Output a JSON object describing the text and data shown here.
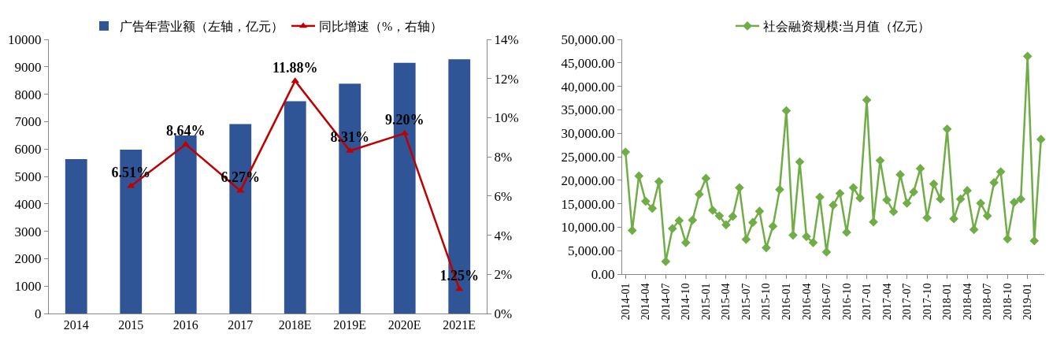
{
  "chart_data": [
    {
      "type": "bar",
      "categories": [
        "2014",
        "2015",
        "2016",
        "2017",
        "2018E",
        "2019E",
        "2020E",
        "2021E"
      ],
      "series": [
        {
          "name": "广告年营业额（左轴，亿元）",
          "color": "#2f5597",
          "values": [
            5630,
            5975,
            6494,
            6914,
            7741,
            8383,
            9148,
            9272
          ]
        },
        {
          "name": "同比增速（%，右轴）",
          "type": "line",
          "axis": "y2",
          "color": "#c00000",
          "marker": "triangle",
          "values": [
            null,
            6.51,
            8.64,
            6.27,
            11.88,
            8.31,
            9.2,
            1.25
          ],
          "value_labels": [
            null,
            "6.51%",
            "8.64%",
            "6.27%",
            "11.88%",
            "8.31%",
            "9.20%",
            "1.25%"
          ]
        }
      ],
      "ylim": [
        0,
        10000
      ],
      "yticks": [
        0,
        1000,
        2000,
        3000,
        4000,
        5000,
        6000,
        7000,
        8000,
        9000,
        10000
      ],
      "y2lim": [
        0,
        14
      ],
      "y2ticks": [
        {
          "value": 0,
          "label": "0%"
        },
        {
          "value": 2,
          "label": "2%"
        },
        {
          "value": 4,
          "label": "4%"
        },
        {
          "value": 6,
          "label": "6%"
        },
        {
          "value": 8,
          "label": "8%"
        },
        {
          "value": 10,
          "label": "10%"
        },
        {
          "value": 12,
          "label": "12%"
        },
        {
          "value": 14,
          "label": "14%"
        }
      ],
      "grid": false,
      "legend": "top"
    },
    {
      "type": "line",
      "categories": [
        "2014-01",
        null,
        null,
        "2014-04",
        null,
        null,
        "2014-07",
        null,
        null,
        "2014-10",
        null,
        null,
        "2015-01",
        null,
        null,
        "2015-04",
        null,
        null,
        "2015-07",
        null,
        null,
        "2015-10",
        null,
        null,
        "2016-01",
        null,
        null,
        "2016-04",
        null,
        null,
        "2016-07",
        null,
        null,
        "2016-10",
        null,
        null,
        "2017-01",
        null,
        null,
        "2017-04",
        null,
        null,
        "2017-07",
        null,
        null,
        "2017-10",
        null,
        null,
        "2018-01",
        null,
        null,
        "2018-04",
        null,
        null,
        "2018-07",
        null,
        null,
        "2018-10",
        null,
        null,
        "2019-01",
        null,
        null
      ],
      "series": [
        {
          "name": "社会融资规模:当月值（亿元）",
          "color": "#70ad47",
          "values": [
            26000,
            9300,
            20900,
            15500,
            14000,
            19700,
            2700,
            9700,
            11400,
            6700,
            11500,
            17000,
            20400,
            13600,
            12400,
            10500,
            12300,
            18400,
            7400,
            11000,
            13400,
            5600,
            10200,
            18000,
            34800,
            8300,
            23900,
            8000,
            6700,
            16400,
            4700,
            14700,
            17200,
            8900,
            18400,
            16200,
            37100,
            11100,
            24200,
            15800,
            13300,
            21200,
            15100,
            17500,
            22500,
            12000,
            19200,
            16000,
            30900,
            11800,
            16000,
            17800,
            9500,
            15100,
            12400,
            19500,
            21800,
            7500,
            15300,
            16000,
            46400,
            7100,
            28700
          ]
        }
      ],
      "ylim": [
        0,
        50000
      ],
      "yticks": [
        {
          "value": 0,
          "label": "0.00"
        },
        {
          "value": 5000,
          "label": "5,000.00"
        },
        {
          "value": 10000,
          "label": "10,000.00"
        },
        {
          "value": 15000,
          "label": "15,000.00"
        },
        {
          "value": 20000,
          "label": "20,000.00"
        },
        {
          "value": 25000,
          "label": "25,000.00"
        },
        {
          "value": 30000,
          "label": "30,000.00"
        },
        {
          "value": 35000,
          "label": "35,000.00"
        },
        {
          "value": 40000,
          "label": "40,000.00"
        },
        {
          "value": 45000,
          "label": "45,000.00"
        },
        {
          "value": 50000,
          "label": "50,000.00"
        }
      ],
      "grid": false,
      "legend": "top",
      "marker": "diamond"
    }
  ]
}
